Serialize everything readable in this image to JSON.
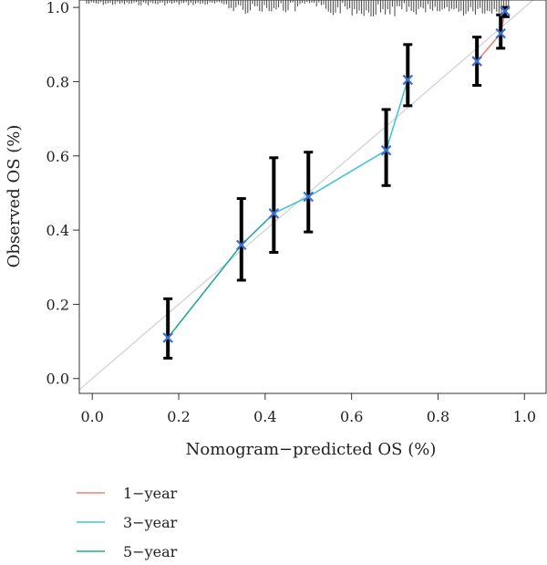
{
  "chart_data": {
    "type": "line",
    "xlabel": "Nomogram−predicted OS (%)",
    "ylabel": "Observed OS (%)",
    "xlim": [
      -0.03,
      1.05
    ],
    "ylim": [
      -0.04,
      1.02
    ],
    "x_ticks": [
      "0.0",
      "0.2",
      "0.4",
      "0.6",
      "0.8",
      "1.0"
    ],
    "x_tick_values": [
      0,
      0.2,
      0.4,
      0.6,
      0.8,
      1.0
    ],
    "y_ticks": [
      "0.0",
      "0.2",
      "0.4",
      "0.6",
      "0.8",
      "1.0"
    ],
    "y_tick_values": [
      0,
      0.2,
      0.4,
      0.6,
      0.8,
      1.0
    ],
    "reference_line": {
      "from": [
        0,
        0
      ],
      "to": [
        1,
        1
      ],
      "color": "#d3d3d3"
    },
    "series": [
      {
        "name": "1−year",
        "color": "#f08070",
        "points": [
          {
            "x": 0.89,
            "y": 0.855,
            "lo": 0.79,
            "hi": 0.92
          },
          {
            "x": 0.945,
            "y": 0.93,
            "lo": 0.89,
            "hi": 0.98
          },
          {
            "x": 0.955,
            "y": 0.99,
            "lo": 0.975,
            "hi": 1.0
          }
        ]
      },
      {
        "name": "3−year",
        "color": "#44c4dc",
        "points": [
          {
            "x": 0.42,
            "y": 0.445,
            "lo": 0.34,
            "hi": 0.595
          },
          {
            "x": 0.5,
            "y": 0.49,
            "lo": 0.395,
            "hi": 0.61
          },
          {
            "x": 0.68,
            "y": 0.615,
            "lo": 0.52,
            "hi": 0.725
          },
          {
            "x": 0.73,
            "y": 0.805,
            "lo": 0.735,
            "hi": 0.9
          }
        ]
      },
      {
        "name": "5−year",
        "color": "#27a89a",
        "points": [
          {
            "x": 0.175,
            "y": 0.11,
            "lo": 0.055,
            "hi": 0.215
          },
          {
            "x": 0.345,
            "y": 0.36,
            "lo": 0.265,
            "hi": 0.485
          },
          {
            "x": 0.42,
            "y": 0.445,
            "lo": 0.34,
            "hi": 0.595
          }
        ]
      }
    ],
    "rug": {
      "present": true,
      "position": "top"
    },
    "legend": {
      "position": "bottom-left",
      "entries": [
        "1−year",
        "3−year",
        "5−year"
      ]
    },
    "grid": false
  }
}
